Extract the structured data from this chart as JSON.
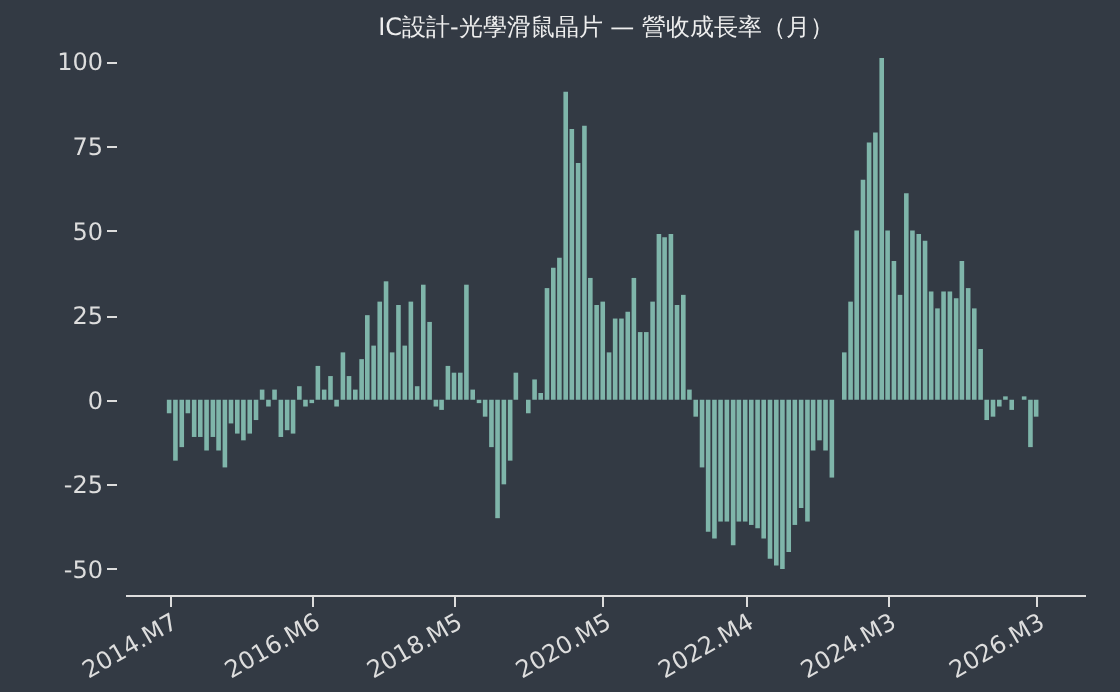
{
  "chart_data": {
    "type": "bar",
    "title": "IC設計-光學滑鼠晶片 — 營收成長率（月）",
    "x": [
      "2014-07",
      "2014-08",
      "2014-09",
      "2014-10",
      "2014-11",
      "2014-12",
      "2015-01",
      "2015-02",
      "2015-03",
      "2015-04",
      "2015-05",
      "2015-06",
      "2015-07",
      "2015-08",
      "2015-09",
      "2015-10",
      "2015-11",
      "2015-12",
      "2016-01",
      "2016-02",
      "2016-03",
      "2016-04",
      "2016-05",
      "2016-06",
      "2016-07",
      "2016-08",
      "2016-09",
      "2016-10",
      "2016-11",
      "2016-12",
      "2017-01",
      "2017-02",
      "2017-03",
      "2017-04",
      "2017-05",
      "2017-06",
      "2017-07",
      "2017-08",
      "2017-09",
      "2017-10",
      "2017-11",
      "2017-12",
      "2018-01",
      "2018-02",
      "2018-03",
      "2018-04",
      "2018-05",
      "2018-06",
      "2018-07",
      "2018-08",
      "2018-09",
      "2018-10",
      "2018-11",
      "2018-12",
      "2019-01",
      "2019-02",
      "2019-03",
      "2019-04",
      "2019-05",
      "2019-06",
      "2019-07",
      "2019-08",
      "2019-09",
      "2019-10",
      "2019-11",
      "2019-12",
      "2020-01",
      "2020-02",
      "2020-03",
      "2020-04",
      "2020-05",
      "2020-06",
      "2020-07",
      "2020-08",
      "2020-09",
      "2020-10",
      "2020-11",
      "2020-12",
      "2021-01",
      "2021-02",
      "2021-03",
      "2021-04",
      "2021-05",
      "2021-06",
      "2021-07",
      "2021-08",
      "2021-09",
      "2021-10",
      "2021-11",
      "2021-12",
      "2022-01",
      "2022-02",
      "2022-03",
      "2022-04",
      "2022-05",
      "2022-06",
      "2022-07",
      "2022-08",
      "2022-09",
      "2022-10",
      "2022-11",
      "2022-12",
      "2023-01",
      "2023-02",
      "2023-03",
      "2023-04",
      "2023-05",
      "2023-06",
      "2023-07",
      "2023-08",
      "2023-09",
      "2023-10",
      "2023-11",
      "2023-12",
      "2024-01",
      "2024-02",
      "2024-03",
      "2024-04",
      "2024-05",
      "2024-06",
      "2024-07",
      "2024-08",
      "2024-09",
      "2024-10",
      "2024-11",
      "2024-12",
      "2025-01",
      "2025-02",
      "2025-03",
      "2025-04",
      "2025-05",
      "2025-06",
      "2025-07",
      "2025-08",
      "2025-09",
      "2025-10",
      "2025-11",
      "2025-12",
      "2026-01",
      "2026-02",
      "2026-03"
    ],
    "series": [
      {
        "color": "#7fb5aa",
        "values": [
          -4,
          -18,
          -14,
          -4,
          -11,
          -11,
          -15,
          -11,
          -15,
          -20,
          -7,
          -10,
          -12,
          -10,
          -6,
          3,
          -2,
          3,
          -11,
          -9,
          -10,
          4,
          -2,
          -1,
          10,
          3,
          7,
          -2,
          14,
          7,
          3,
          12,
          25,
          16,
          29,
          35,
          14,
          28,
          16,
          29,
          4,
          34,
          23,
          -2,
          -3,
          10,
          8,
          8,
          34,
          3,
          -1,
          -5,
          -14,
          -35,
          -25,
          -18,
          8,
          0,
          -4,
          6,
          2,
          33,
          39,
          42,
          91,
          80,
          70,
          81,
          36,
          28,
          29,
          14,
          24,
          24,
          26,
          36,
          20,
          20,
          29,
          49,
          48,
          49,
          28,
          31,
          3,
          -5,
          -20,
          -39,
          -41,
          -36,
          -36,
          -43,
          -36,
          -36,
          -37,
          -38,
          -41,
          -47,
          -49,
          -50,
          -45,
          -37,
          -32,
          -36,
          -15,
          -12,
          -15,
          -23,
          0,
          14,
          29,
          50,
          65,
          76,
          79,
          101,
          50,
          41,
          31,
          61,
          50,
          49,
          47,
          32,
          27,
          32,
          32,
          30,
          41,
          33,
          27,
          15,
          -6,
          -5,
          -2,
          1,
          -3,
          null,
          1,
          -14,
          -5
        ]
      }
    ],
    "xlim": [
      "2013-12",
      "2026-11"
    ],
    "xticks": [
      {
        "value": "2014-07",
        "label": "2014.M7"
      },
      {
        "value": "2016-06",
        "label": "2016.M6"
      },
      {
        "value": "2018-05",
        "label": "2018.M5"
      },
      {
        "value": "2020-05",
        "label": "2020.M5"
      },
      {
        "value": "2022-04",
        "label": "2022.M4"
      },
      {
        "value": "2024-03",
        "label": "2024.M3"
      },
      {
        "value": "2026-03",
        "label": "2026.M3"
      }
    ],
    "ylim": [
      -58,
      101
    ],
    "yticks": [
      -50,
      -25,
      0,
      25,
      50,
      75,
      100
    ],
    "grid": false
  }
}
